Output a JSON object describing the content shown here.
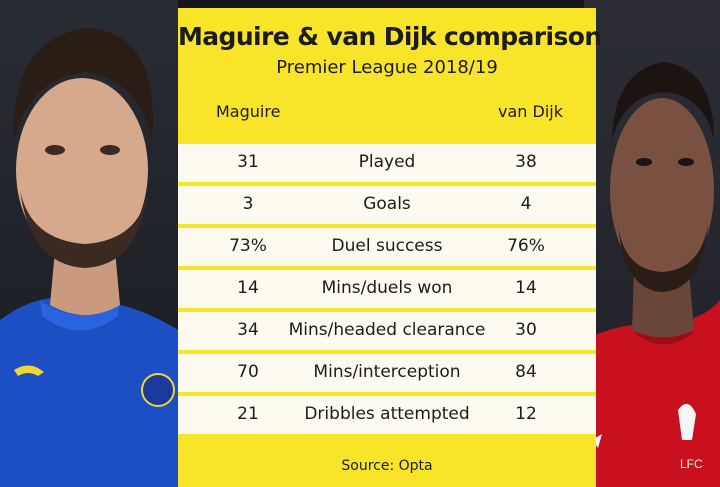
{
  "graphic": {
    "title": "Maguire & van Dijk comparison",
    "subtitle": "Premier League 2018/19",
    "left_player": "Maguire",
    "right_player": "van Dijk",
    "source": "Source: Opta",
    "accent_color": "#f8e52a"
  },
  "stats": [
    {
      "metric": "Played",
      "left": "31",
      "right": "38"
    },
    {
      "metric": "Goals",
      "left": "3",
      "right": "4"
    },
    {
      "metric": "Duel success",
      "left": "73%",
      "right": "76%"
    },
    {
      "metric": "Mins/duels won",
      "left": "14",
      "right": "14"
    },
    {
      "metric": "Mins/headed clearance",
      "left": "34",
      "right": "30"
    },
    {
      "metric": "Mins/interception",
      "left": "70",
      "right": "84"
    },
    {
      "metric": "Dribbles attempted",
      "left": "21",
      "right": "12"
    }
  ],
  "left_badge": {
    "shirt_color": "#1c4fc4"
  },
  "right_badge": {
    "shirt_color": "#c8101e",
    "crest_text": "LFC"
  }
}
